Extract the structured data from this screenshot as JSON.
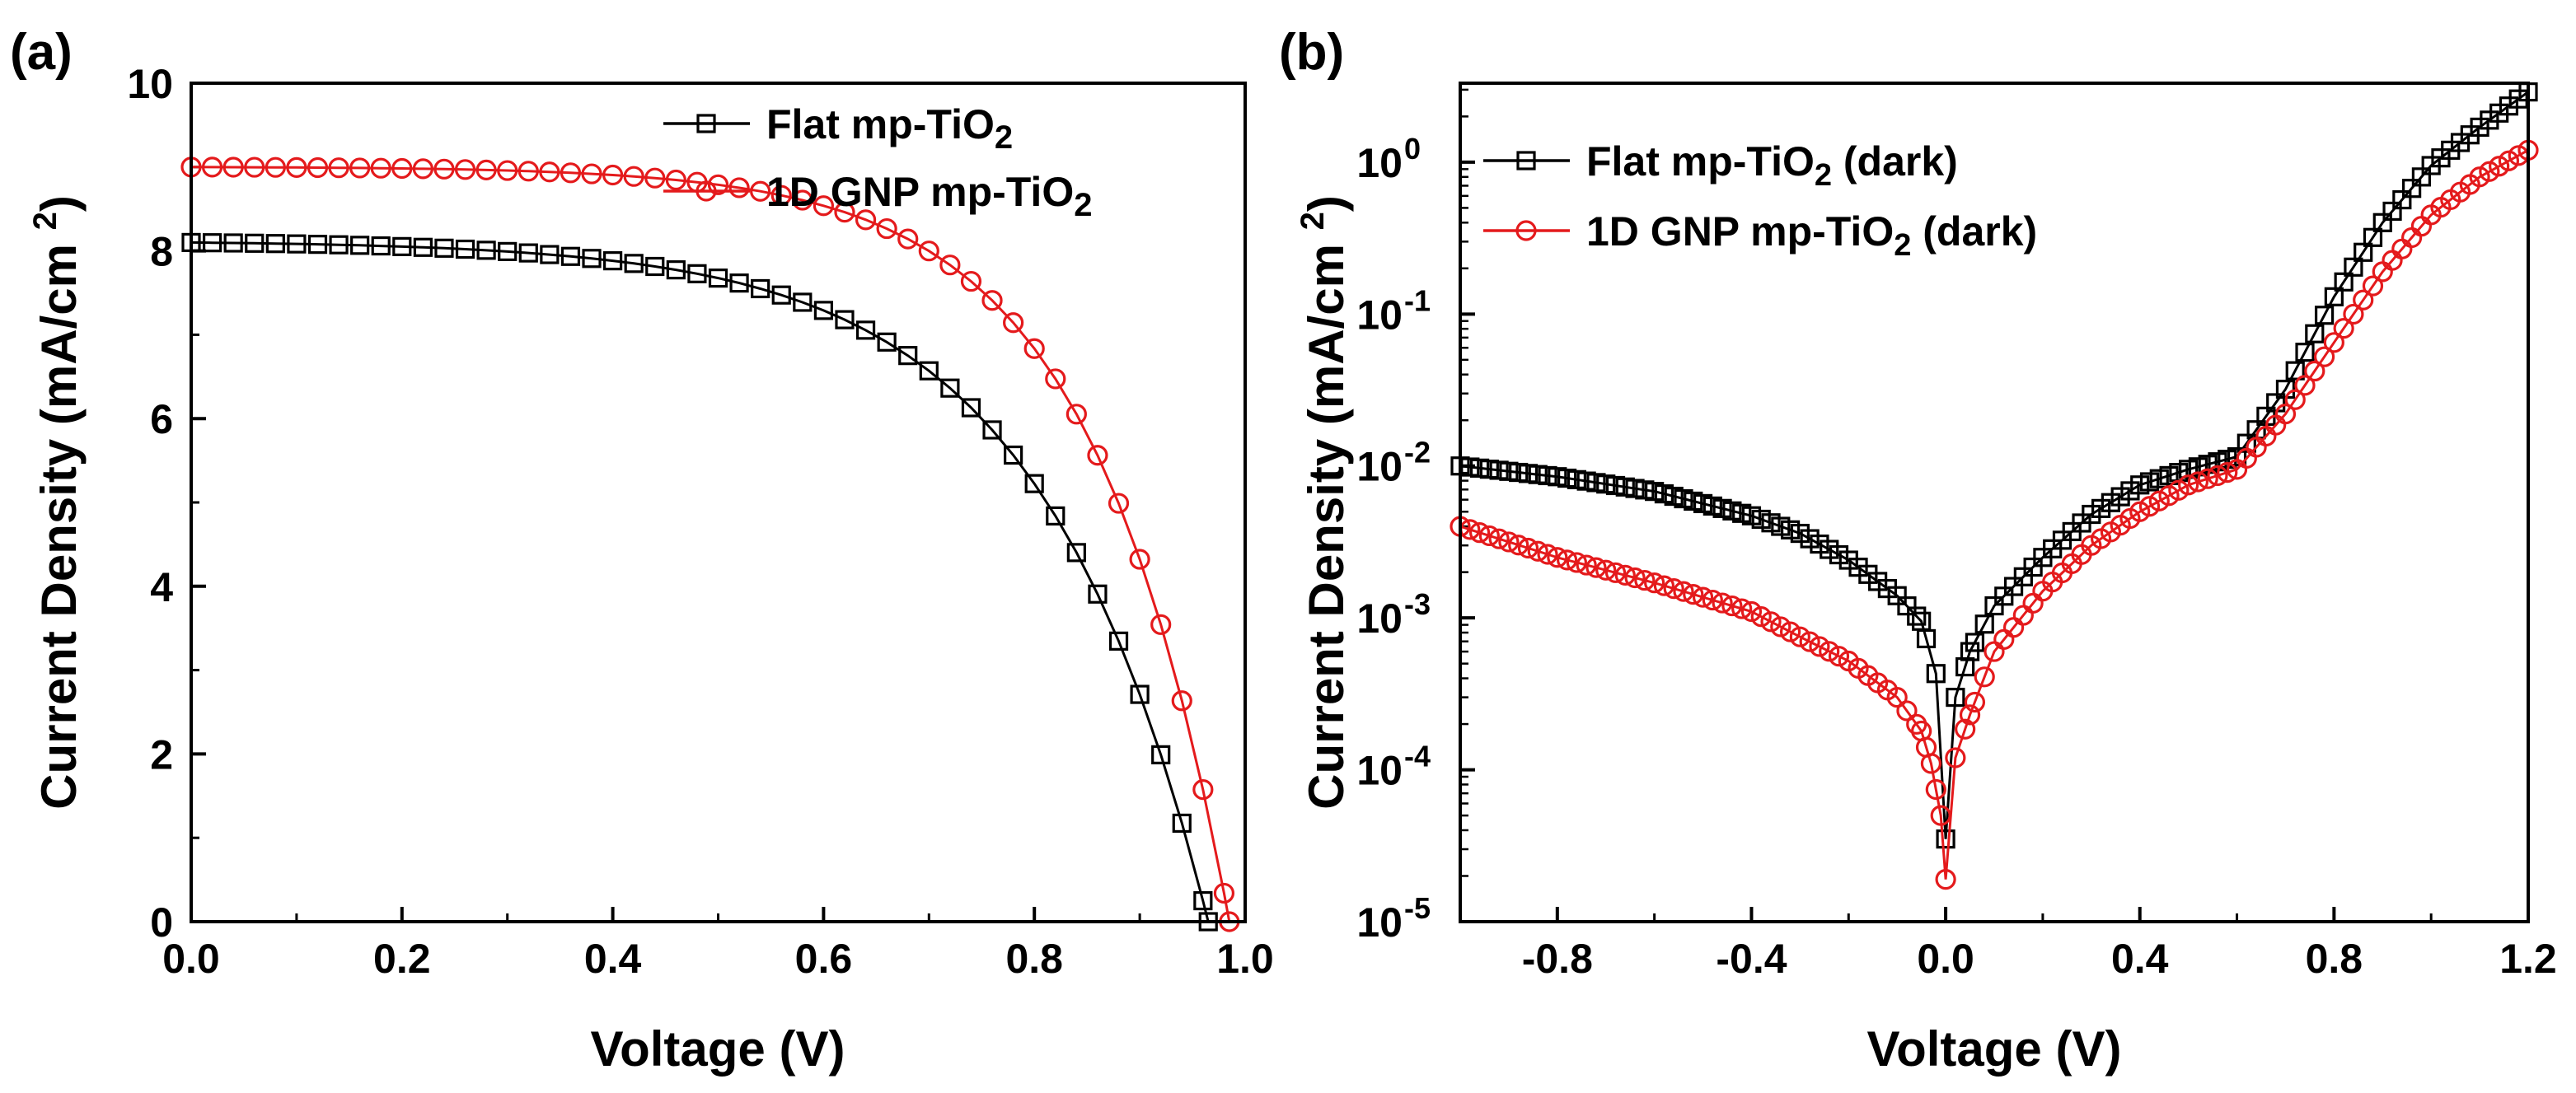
{
  "figure": {
    "panels": [
      "(a)",
      "(b)"
    ]
  },
  "chart_data": [
    {
      "id": "a",
      "panel_label": "(a)",
      "type": "line",
      "xlabel": "Voltage (V)",
      "ylabel": "Current Density (mA/cm²)",
      "xlim": [
        0.0,
        1.0
      ],
      "ylim": [
        0,
        10
      ],
      "yscale": "linear",
      "xticks": [
        0.0,
        0.2,
        0.4,
        0.6,
        0.8,
        1.0
      ],
      "xtick_labels": [
        "0.0",
        "0.2",
        "0.4",
        "0.6",
        "0.8",
        "1.0"
      ],
      "yticks": [
        0,
        2,
        4,
        6,
        8,
        10
      ],
      "ytick_labels": [
        "0",
        "2",
        "4",
        "6",
        "8",
        "10"
      ],
      "legend_position": "top-right",
      "series": [
        {
          "name": "Flat mp-TiO",
          "name_sub": "2",
          "color": "#000000",
          "marker": "square",
          "curve": {
            "jsc": 8.1,
            "voc": 0.965,
            "ideality": 0.16
          }
        },
        {
          "name": "1D GNP mp-TiO",
          "name_sub": "2",
          "color": "#e41a1c",
          "marker": "circle",
          "curve": {
            "jsc": 9.0,
            "voc": 0.985,
            "ideality": 0.13
          }
        }
      ],
      "x_step": 0.02
    },
    {
      "id": "b",
      "panel_label": "(b)",
      "type": "line",
      "xlabel": "Voltage (V)",
      "ylabel": "Current Density (mA/cm²)",
      "xlim": [
        -1.0,
        1.2
      ],
      "ylim_log10": [
        -5,
        0.52
      ],
      "yscale": "log",
      "xticks": [
        -0.8,
        -0.4,
        0.0,
        0.4,
        0.8,
        1.2
      ],
      "xtick_labels": [
        "-0.8",
        "-0.4",
        "0.0",
        "0.4",
        "0.8",
        "1.2"
      ],
      "ytick_exponents": [
        0,
        -1,
        -2,
        -3,
        -4,
        -5
      ],
      "ytick_base": "10",
      "legend_position": "top-left",
      "series": [
        {
          "name": "Flat mp-TiO",
          "name_sub": "2",
          "name_suffix": " (dark)",
          "color": "#000000",
          "marker": "square",
          "points": [
            [
              -1.0,
              0.01
            ],
            [
              -0.8,
              0.0085
            ],
            [
              -0.6,
              0.0068
            ],
            [
              -0.4,
              0.0047
            ],
            [
              -0.3,
              0.0036
            ],
            [
              -0.2,
              0.0024
            ],
            [
              -0.1,
              0.0014
            ],
            [
              -0.05,
              0.00095
            ],
            [
              -0.02,
              0.00043
            ],
            [
              0.0,
              3.5e-05
            ],
            [
              0.02,
              0.0003
            ],
            [
              0.05,
              0.0006
            ],
            [
              0.1,
              0.0012
            ],
            [
              0.2,
              0.0025
            ],
            [
              0.3,
              0.0048
            ],
            [
              0.4,
              0.0075
            ],
            [
              0.5,
              0.0095
            ],
            [
              0.6,
              0.0115
            ],
            [
              0.7,
              0.032
            ],
            [
              0.8,
              0.13
            ],
            [
              0.9,
              0.4
            ],
            [
              1.0,
              0.95
            ],
            [
              1.1,
              1.7
            ],
            [
              1.2,
              2.9
            ]
          ]
        },
        {
          "name": "1D GNP mp-TiO",
          "name_sub": "2",
          "name_suffix": " (dark)",
          "color": "#e41a1c",
          "marker": "circle",
          "points": [
            [
              -1.0,
              0.004
            ],
            [
              -0.8,
              0.0025
            ],
            [
              -0.6,
              0.0017
            ],
            [
              -0.4,
              0.0011
            ],
            [
              -0.3,
              0.00075
            ],
            [
              -0.2,
              0.00052
            ],
            [
              -0.1,
              0.0003
            ],
            [
              -0.05,
              0.00018
            ],
            [
              -0.03,
              0.00011
            ],
            [
              -0.01,
              5e-05
            ],
            [
              0.0,
              1.9e-05
            ],
            [
              0.02,
              0.00012
            ],
            [
              0.05,
              0.00023
            ],
            [
              0.1,
              0.0006
            ],
            [
              0.2,
              0.0015
            ],
            [
              0.3,
              0.003
            ],
            [
              0.4,
              0.005
            ],
            [
              0.5,
              0.0075
            ],
            [
              0.6,
              0.0095
            ],
            [
              0.7,
              0.022
            ],
            [
              0.8,
              0.065
            ],
            [
              0.9,
              0.19
            ],
            [
              1.0,
              0.45
            ],
            [
              1.1,
              0.8
            ],
            [
              1.2,
              1.2
            ]
          ],
          "marker_step": 0.02
        }
      ],
      "x_step": 0.02
    }
  ]
}
